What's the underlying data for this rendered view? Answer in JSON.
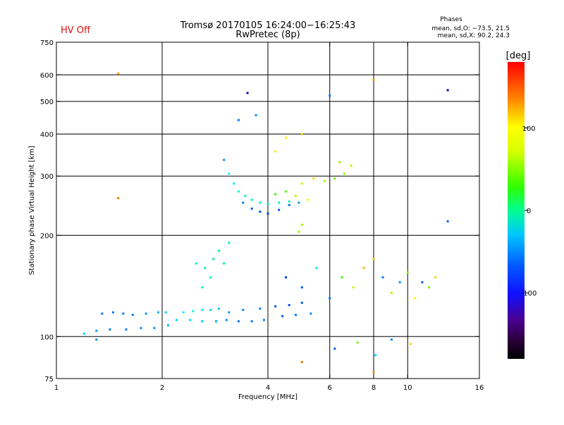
{
  "status_text": "HV Off",
  "colorbar": {
    "unit": "[deg]",
    "tick_labels": [
      "100",
      "0",
      "-100"
    ],
    "tick_values": [
      100,
      0,
      -100
    ],
    "range": [
      -180,
      180
    ]
  },
  "chart_data": {
    "type": "scatter",
    "title": "Tromsø 20170105 16:24:00−16:25:43",
    "subtitle": "RwPretec (8p)",
    "xlabel": "Frequency [MHz]",
    "ylabel": "Stationary phase Virtual Height [km]",
    "xscale": "log",
    "yscale": "log",
    "xlim": [
      1,
      16
    ],
    "ylim": [
      75,
      750
    ],
    "xticks": [
      1,
      2,
      4,
      6,
      8,
      10,
      16
    ],
    "yticks": [
      75,
      100,
      200,
      300,
      400,
      500,
      600,
      750
    ],
    "vgrid": [
      2,
      4,
      6,
      8,
      10
    ],
    "hgrid": [
      100,
      200,
      300,
      400,
      500,
      600
    ],
    "legend": {
      "title": "Phases",
      "lines": [
        "mean, sd,O: −73.5, 21.5",
        "mean, sd,X:  90.2, 24.3"
      ]
    },
    "series": [
      {
        "points": [
          [
            1.2,
            102,
            -70
          ],
          [
            1.3,
            98,
            -90
          ],
          [
            1.35,
            117,
            -100
          ],
          [
            1.45,
            118,
            -100
          ],
          [
            1.55,
            117,
            -100
          ],
          [
            1.65,
            116,
            -95
          ],
          [
            1.8,
            117,
            -90
          ],
          [
            1.95,
            118,
            -80
          ],
          [
            2.05,
            118,
            -70
          ],
          [
            1.3,
            104,
            -90
          ],
          [
            1.42,
            105,
            -100
          ],
          [
            1.58,
            105,
            -100
          ],
          [
            1.74,
            106,
            -95
          ],
          [
            1.9,
            106,
            -90
          ],
          [
            2.08,
            108,
            -80
          ],
          [
            2.2,
            112,
            -70
          ],
          [
            2.3,
            118,
            -60
          ],
          [
            2.45,
            119,
            -55
          ],
          [
            2.6,
            120,
            -60
          ],
          [
            2.75,
            120,
            -70
          ],
          [
            2.9,
            121,
            -75
          ],
          [
            2.4,
            112,
            -65
          ],
          [
            2.6,
            111,
            -70
          ],
          [
            2.85,
            111,
            -85
          ],
          [
            3.05,
            112,
            -95
          ],
          [
            3.3,
            111,
            -100
          ],
          [
            3.6,
            111,
            -100
          ],
          [
            3.9,
            112,
            -95
          ],
          [
            3.1,
            118,
            -90
          ],
          [
            3.4,
            120,
            -95
          ],
          [
            3.8,
            121,
            -100
          ],
          [
            4.2,
            123,
            -110
          ],
          [
            4.6,
            124,
            -115
          ],
          [
            5.0,
            126,
            -110
          ],
          [
            4.4,
            115,
            -110
          ],
          [
            4.8,
            116,
            -100
          ],
          [
            5.3,
            117,
            -95
          ],
          [
            2.5,
            165,
            -30
          ],
          [
            2.65,
            160,
            -35
          ],
          [
            2.8,
            170,
            -25
          ],
          [
            2.9,
            180,
            -20
          ],
          [
            3.0,
            165,
            -30
          ],
          [
            2.75,
            150,
            -35
          ],
          [
            3.1,
            190,
            -25
          ],
          [
            2.6,
            140,
            -40
          ],
          [
            3.0,
            335,
            -90
          ],
          [
            3.1,
            305,
            -60
          ],
          [
            3.2,
            285,
            -55
          ],
          [
            3.3,
            270,
            -50
          ],
          [
            3.45,
            262,
            -45
          ],
          [
            3.6,
            255,
            -45
          ],
          [
            3.8,
            250,
            -40
          ],
          [
            4.0,
            248,
            -40
          ],
          [
            4.3,
            250,
            -35
          ],
          [
            4.6,
            252,
            -40
          ],
          [
            3.4,
            250,
            -100
          ],
          [
            3.6,
            240,
            -110
          ],
          [
            3.8,
            235,
            -115
          ],
          [
            4.0,
            232,
            -120
          ],
          [
            4.3,
            238,
            -110
          ],
          [
            4.6,
            246,
            -100
          ],
          [
            4.9,
            250,
            -90
          ],
          [
            4.2,
            265,
            40
          ],
          [
            4.5,
            270,
            50
          ],
          [
            4.8,
            262,
            80
          ],
          [
            5.2,
            255,
            100
          ],
          [
            5.0,
            285,
            90
          ],
          [
            5.4,
            295,
            110
          ],
          [
            5.8,
            290,
            80
          ],
          [
            6.2,
            295,
            60
          ],
          [
            6.6,
            305,
            70
          ],
          [
            6.9,
            322,
            80
          ],
          [
            6.4,
            330,
            70
          ],
          [
            5.0,
            215,
            80
          ],
          [
            4.9,
            205,
            70
          ],
          [
            3.3,
            440,
            -100
          ],
          [
            3.5,
            530,
            -150
          ],
          [
            3.7,
            455,
            -90
          ],
          [
            4.2,
            355,
            100
          ],
          [
            4.5,
            390,
            100
          ],
          [
            5.0,
            400,
            110
          ],
          [
            6.0,
            520,
            -100
          ],
          [
            8.0,
            580,
            130
          ],
          [
            13.0,
            540,
            -140
          ],
          [
            1.5,
            605,
            130
          ],
          [
            1.5,
            258,
            140
          ],
          [
            13.0,
            220,
            -110
          ],
          [
            4.5,
            150,
            -120
          ],
          [
            5.0,
            140,
            -110
          ],
          [
            5.5,
            160,
            -60
          ],
          [
            6.0,
            130,
            -100
          ],
          [
            6.5,
            150,
            40
          ],
          [
            7.0,
            140,
            90
          ],
          [
            7.5,
            160,
            120
          ],
          [
            8.0,
            170,
            110
          ],
          [
            8.5,
            150,
            -100
          ],
          [
            9.0,
            135,
            80
          ],
          [
            9.5,
            145,
            -90
          ],
          [
            10.0,
            155,
            60
          ],
          [
            10.5,
            130,
            100
          ],
          [
            11.0,
            145,
            -110
          ],
          [
            11.5,
            140,
            60
          ],
          [
            12.0,
            150,
            110
          ],
          [
            6.2,
            92,
            -110
          ],
          [
            7.2,
            96,
            60
          ],
          [
            8.1,
            88,
            -70
          ],
          [
            9.0,
            98,
            -95
          ],
          [
            10.2,
            95,
            110
          ],
          [
            5.0,
            84,
            140
          ],
          [
            8.0,
            78,
            130
          ]
        ]
      }
    ]
  }
}
